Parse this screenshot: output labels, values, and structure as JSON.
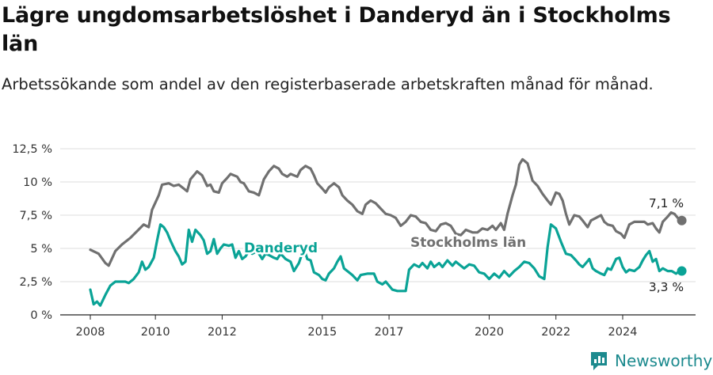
{
  "title": "Lägre ungdomsarbetslöshet i Danderyd än i Stockholms län",
  "subtitle": "Arbetssökande som andel av den registerbaserade arbetskraften månad för månad.",
  "brand": "Newsworthy",
  "colors": {
    "stockholm": "#707070",
    "danderyd": "#0aa396",
    "grid": "#dddddd",
    "axis": "#222222"
  },
  "chart_data": {
    "type": "line",
    "title": "Lägre ungdomsarbetslöshet i Danderyd än i Stockholms län",
    "subtitle": "Arbetssökande som andel av den registerbaserade arbetskraften månad för månad.",
    "xlabel": "",
    "ylabel": "",
    "xlim": [
      2008.0,
      2025.92
    ],
    "ylim": [
      0,
      12.5
    ],
    "grid": true,
    "y_ticks": [
      0,
      2.5,
      5,
      7.5,
      10,
      12.5
    ],
    "y_tick_labels": [
      "0 %",
      "2,5 %",
      "5 %",
      "7,5 %",
      "10 %",
      "12,5 %"
    ],
    "x_tick_labels": [
      "2008",
      "2010",
      "2012",
      "2015",
      "2017",
      "2020",
      "2022",
      "2024"
    ],
    "x_tick_positions": [
      2008.0,
      2009.95,
      2011.95,
      2014.95,
      2016.95,
      2019.95,
      2021.95,
      2023.95
    ],
    "series": [
      {
        "name": "Stockholms län",
        "end_label": "7,1 %",
        "points": [
          [
            2008.0,
            4.9
          ],
          [
            2008.25,
            4.6
          ],
          [
            2008.45,
            3.9
          ],
          [
            2008.55,
            3.7
          ],
          [
            2008.75,
            4.8
          ],
          [
            2008.95,
            5.3
          ],
          [
            2009.2,
            5.8
          ],
          [
            2009.4,
            6.3
          ],
          [
            2009.6,
            6.8
          ],
          [
            2009.75,
            6.6
          ],
          [
            2009.85,
            7.9
          ],
          [
            2010.05,
            9.0
          ],
          [
            2010.15,
            9.8
          ],
          [
            2010.35,
            9.9
          ],
          [
            2010.5,
            9.7
          ],
          [
            2010.65,
            9.8
          ],
          [
            2010.8,
            9.5
          ],
          [
            2010.9,
            9.3
          ],
          [
            2011.0,
            10.2
          ],
          [
            2011.2,
            10.8
          ],
          [
            2011.35,
            10.5
          ],
          [
            2011.5,
            9.7
          ],
          [
            2011.6,
            9.8
          ],
          [
            2011.7,
            9.3
          ],
          [
            2011.85,
            9.2
          ],
          [
            2011.95,
            9.9
          ],
          [
            2012.1,
            10.3
          ],
          [
            2012.2,
            10.6
          ],
          [
            2012.4,
            10.4
          ],
          [
            2012.5,
            10.0
          ],
          [
            2012.6,
            9.9
          ],
          [
            2012.75,
            9.3
          ],
          [
            2012.9,
            9.2
          ],
          [
            2013.05,
            9.0
          ],
          [
            2013.2,
            10.2
          ],
          [
            2013.35,
            10.8
          ],
          [
            2013.5,
            11.2
          ],
          [
            2013.65,
            11.0
          ],
          [
            2013.75,
            10.6
          ],
          [
            2013.9,
            10.4
          ],
          [
            2014.0,
            10.6
          ],
          [
            2014.2,
            10.4
          ],
          [
            2014.3,
            10.9
          ],
          [
            2014.45,
            11.2
          ],
          [
            2014.6,
            11.0
          ],
          [
            2014.7,
            10.5
          ],
          [
            2014.8,
            9.9
          ],
          [
            2014.95,
            9.5
          ],
          [
            2015.05,
            9.2
          ],
          [
            2015.15,
            9.6
          ],
          [
            2015.3,
            9.9
          ],
          [
            2015.45,
            9.6
          ],
          [
            2015.55,
            9.0
          ],
          [
            2015.7,
            8.6
          ],
          [
            2015.85,
            8.3
          ],
          [
            2016.0,
            7.8
          ],
          [
            2016.15,
            7.6
          ],
          [
            2016.25,
            8.3
          ],
          [
            2016.4,
            8.6
          ],
          [
            2016.55,
            8.4
          ],
          [
            2016.7,
            8.0
          ],
          [
            2016.85,
            7.6
          ],
          [
            2017.0,
            7.5
          ],
          [
            2017.15,
            7.3
          ],
          [
            2017.3,
            6.7
          ],
          [
            2017.45,
            7.0
          ],
          [
            2017.6,
            7.5
          ],
          [
            2017.75,
            7.4
          ],
          [
            2017.9,
            7.0
          ],
          [
            2018.05,
            6.9
          ],
          [
            2018.2,
            6.4
          ],
          [
            2018.35,
            6.3
          ],
          [
            2018.5,
            6.8
          ],
          [
            2018.65,
            6.9
          ],
          [
            2018.8,
            6.7
          ],
          [
            2018.95,
            6.1
          ],
          [
            2019.1,
            6.0
          ],
          [
            2019.25,
            6.4
          ],
          [
            2019.45,
            6.2
          ],
          [
            2019.6,
            6.2
          ],
          [
            2019.75,
            6.5
          ],
          [
            2019.9,
            6.4
          ],
          [
            2020.05,
            6.7
          ],
          [
            2020.15,
            6.4
          ],
          [
            2020.3,
            6.9
          ],
          [
            2020.4,
            6.4
          ],
          [
            2020.5,
            7.6
          ],
          [
            2020.65,
            9.0
          ],
          [
            2020.75,
            9.8
          ],
          [
            2020.85,
            11.3
          ],
          [
            2020.95,
            11.7
          ],
          [
            2021.1,
            11.4
          ],
          [
            2021.25,
            10.1
          ],
          [
            2021.4,
            9.7
          ],
          [
            2021.55,
            9.1
          ],
          [
            2021.7,
            8.6
          ],
          [
            2021.8,
            8.3
          ],
          [
            2021.95,
            9.2
          ],
          [
            2022.05,
            9.1
          ],
          [
            2022.15,
            8.6
          ],
          [
            2022.25,
            7.6
          ],
          [
            2022.35,
            6.8
          ],
          [
            2022.5,
            7.5
          ],
          [
            2022.65,
            7.4
          ],
          [
            2022.75,
            7.1
          ],
          [
            2022.9,
            6.6
          ],
          [
            2023.0,
            7.1
          ],
          [
            2023.15,
            7.3
          ],
          [
            2023.3,
            7.5
          ],
          [
            2023.4,
            7.0
          ],
          [
            2023.5,
            6.8
          ],
          [
            2023.65,
            6.7
          ],
          [
            2023.75,
            6.3
          ],
          [
            2023.9,
            6.1
          ],
          [
            2024.0,
            5.8
          ],
          [
            2024.15,
            6.8
          ],
          [
            2024.3,
            7.0
          ],
          [
            2024.45,
            7.0
          ],
          [
            2024.6,
            7.0
          ],
          [
            2024.7,
            6.8
          ],
          [
            2024.85,
            6.9
          ],
          [
            2024.95,
            6.5
          ],
          [
            2025.05,
            6.2
          ],
          [
            2025.15,
            7.0
          ],
          [
            2025.3,
            7.4
          ],
          [
            2025.4,
            7.7
          ],
          [
            2025.5,
            7.6
          ],
          [
            2025.6,
            7.3
          ],
          [
            2025.72,
            7.1
          ]
        ]
      },
      {
        "name": "Danderyd",
        "end_label": "3,3 %",
        "points": [
          [
            2008.0,
            1.9
          ],
          [
            2008.1,
            0.8
          ],
          [
            2008.2,
            1.0
          ],
          [
            2008.3,
            0.7
          ],
          [
            2008.45,
            1.5
          ],
          [
            2008.6,
            2.2
          ],
          [
            2008.75,
            2.5
          ],
          [
            2008.9,
            2.5
          ],
          [
            2009.05,
            2.5
          ],
          [
            2009.15,
            2.4
          ],
          [
            2009.3,
            2.7
          ],
          [
            2009.45,
            3.2
          ],
          [
            2009.55,
            4.0
          ],
          [
            2009.65,
            3.4
          ],
          [
            2009.75,
            3.6
          ],
          [
            2009.9,
            4.3
          ],
          [
            2010.0,
            5.6
          ],
          [
            2010.1,
            6.8
          ],
          [
            2010.2,
            6.6
          ],
          [
            2010.3,
            6.2
          ],
          [
            2010.4,
            5.6
          ],
          [
            2010.55,
            4.8
          ],
          [
            2010.65,
            4.4
          ],
          [
            2010.75,
            3.8
          ],
          [
            2010.85,
            4.0
          ],
          [
            2010.95,
            6.4
          ],
          [
            2011.05,
            5.5
          ],
          [
            2011.15,
            6.4
          ],
          [
            2011.3,
            6.0
          ],
          [
            2011.4,
            5.6
          ],
          [
            2011.5,
            4.6
          ],
          [
            2011.6,
            4.8
          ],
          [
            2011.7,
            5.7
          ],
          [
            2011.8,
            4.6
          ],
          [
            2011.9,
            5.0
          ],
          [
            2012.0,
            5.3
          ],
          [
            2012.15,
            5.2
          ],
          [
            2012.25,
            5.3
          ],
          [
            2012.35,
            4.3
          ],
          [
            2012.45,
            4.8
          ],
          [
            2012.55,
            4.2
          ],
          [
            2012.65,
            4.4
          ],
          [
            2012.75,
            4.8
          ],
          [
            2012.85,
            4.6
          ],
          [
            2013.0,
            4.8
          ],
          [
            2013.15,
            4.2
          ],
          [
            2013.25,
            4.6
          ],
          [
            2013.35,
            4.5
          ],
          [
            2013.5,
            4.3
          ],
          [
            2013.6,
            4.2
          ],
          [
            2013.7,
            4.6
          ],
          [
            2013.85,
            4.2
          ],
          [
            2014.0,
            4.0
          ],
          [
            2014.1,
            3.3
          ],
          [
            2014.25,
            3.9
          ],
          [
            2014.4,
            5.0
          ],
          [
            2014.5,
            4.2
          ],
          [
            2014.6,
            4.1
          ],
          [
            2014.7,
            3.2
          ],
          [
            2014.85,
            3.0
          ],
          [
            2014.95,
            2.7
          ],
          [
            2015.05,
            2.6
          ],
          [
            2015.15,
            3.1
          ],
          [
            2015.3,
            3.5
          ],
          [
            2015.4,
            4.0
          ],
          [
            2015.5,
            4.4
          ],
          [
            2015.6,
            3.5
          ],
          [
            2015.75,
            3.2
          ],
          [
            2015.85,
            3.0
          ],
          [
            2016.0,
            2.6
          ],
          [
            2016.1,
            3.0
          ],
          [
            2016.3,
            3.1
          ],
          [
            2016.5,
            3.1
          ],
          [
            2016.6,
            2.5
          ],
          [
            2016.75,
            2.3
          ],
          [
            2016.85,
            2.5
          ],
          [
            2016.95,
            2.2
          ],
          [
            2017.05,
            1.9
          ],
          [
            2017.2,
            1.8
          ],
          [
            2017.35,
            1.8
          ],
          [
            2017.45,
            1.8
          ],
          [
            2017.55,
            3.4
          ],
          [
            2017.7,
            3.8
          ],
          [
            2017.85,
            3.6
          ],
          [
            2017.95,
            3.9
          ],
          [
            2018.1,
            3.5
          ],
          [
            2018.2,
            4.0
          ],
          [
            2018.3,
            3.6
          ],
          [
            2018.45,
            3.9
          ],
          [
            2018.55,
            3.6
          ],
          [
            2018.7,
            4.1
          ],
          [
            2018.85,
            3.7
          ],
          [
            2018.95,
            4.0
          ],
          [
            2019.05,
            3.8
          ],
          [
            2019.2,
            3.5
          ],
          [
            2019.35,
            3.8
          ],
          [
            2019.5,
            3.7
          ],
          [
            2019.65,
            3.2
          ],
          [
            2019.8,
            3.1
          ],
          [
            2019.95,
            2.7
          ],
          [
            2020.1,
            3.1
          ],
          [
            2020.25,
            2.8
          ],
          [
            2020.4,
            3.3
          ],
          [
            2020.55,
            2.9
          ],
          [
            2020.7,
            3.3
          ],
          [
            2020.85,
            3.6
          ],
          [
            2021.0,
            4.0
          ],
          [
            2021.15,
            3.9
          ],
          [
            2021.3,
            3.5
          ],
          [
            2021.45,
            2.9
          ],
          [
            2021.6,
            2.7
          ],
          [
            2021.7,
            5.1
          ],
          [
            2021.8,
            6.8
          ],
          [
            2021.95,
            6.5
          ],
          [
            2022.1,
            5.5
          ],
          [
            2022.25,
            4.6
          ],
          [
            2022.4,
            4.5
          ],
          [
            2022.55,
            4.1
          ],
          [
            2022.65,
            3.8
          ],
          [
            2022.75,
            3.6
          ],
          [
            2022.85,
            3.9
          ],
          [
            2022.95,
            4.2
          ],
          [
            2023.05,
            3.5
          ],
          [
            2023.15,
            3.3
          ],
          [
            2023.3,
            3.1
          ],
          [
            2023.4,
            3.0
          ],
          [
            2023.5,
            3.5
          ],
          [
            2023.6,
            3.4
          ],
          [
            2023.75,
            4.2
          ],
          [
            2023.85,
            4.3
          ],
          [
            2023.95,
            3.6
          ],
          [
            2024.05,
            3.2
          ],
          [
            2024.15,
            3.4
          ],
          [
            2024.3,
            3.3
          ],
          [
            2024.45,
            3.6
          ],
          [
            2024.55,
            4.1
          ],
          [
            2024.65,
            4.5
          ],
          [
            2024.75,
            4.8
          ],
          [
            2024.85,
            4.0
          ],
          [
            2024.95,
            4.2
          ],
          [
            2025.05,
            3.3
          ],
          [
            2025.15,
            3.5
          ],
          [
            2025.3,
            3.3
          ],
          [
            2025.42,
            3.3
          ],
          [
            2025.55,
            3.1
          ],
          [
            2025.65,
            3.3
          ],
          [
            2025.72,
            3.3
          ]
        ]
      }
    ]
  }
}
